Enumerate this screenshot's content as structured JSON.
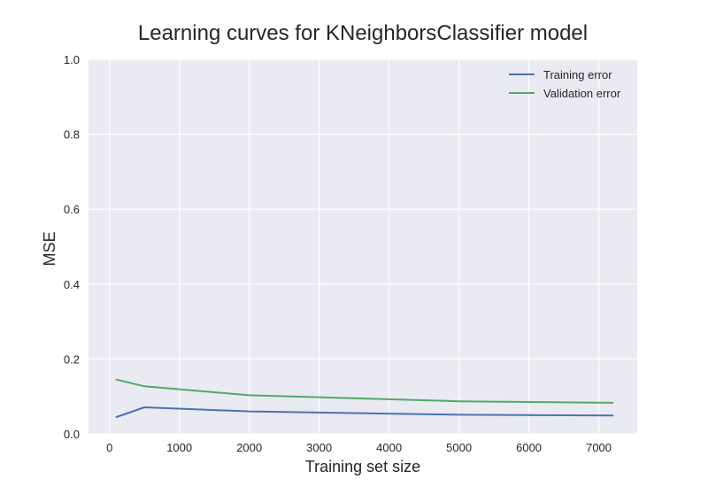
{
  "chart_data": {
    "type": "line",
    "title": "Learning curves for KNeighborsClassifier model",
    "xlabel": "Training set size",
    "ylabel": "MSE",
    "xlim": [
      -300,
      7550
    ],
    "ylim": [
      0,
      1.0
    ],
    "xticks": [
      0,
      1000,
      2000,
      3000,
      4000,
      5000,
      6000,
      7000
    ],
    "xtick_labels": [
      "0",
      "1000",
      "2000",
      "3000",
      "4000",
      "5000",
      "6000",
      "7000"
    ],
    "yticks": [
      0.0,
      0.2,
      0.4,
      0.6,
      0.8,
      1.0
    ],
    "ytick_labels": [
      "0.0",
      "0.2",
      "0.4",
      "0.6",
      "0.8",
      "1.0"
    ],
    "grid": true,
    "legend_position": "top-right",
    "series": [
      {
        "name": "Training error",
        "color": "#4c72b0",
        "x": [
          100,
          500,
          2000,
          5000,
          7200
        ],
        "y": [
          0.045,
          0.071,
          0.06,
          0.051,
          0.049
        ]
      },
      {
        "name": "Validation error",
        "color": "#55a868",
        "x": [
          100,
          500,
          2000,
          5000,
          7200
        ],
        "y": [
          0.145,
          0.127,
          0.103,
          0.087,
          0.083
        ]
      }
    ]
  }
}
